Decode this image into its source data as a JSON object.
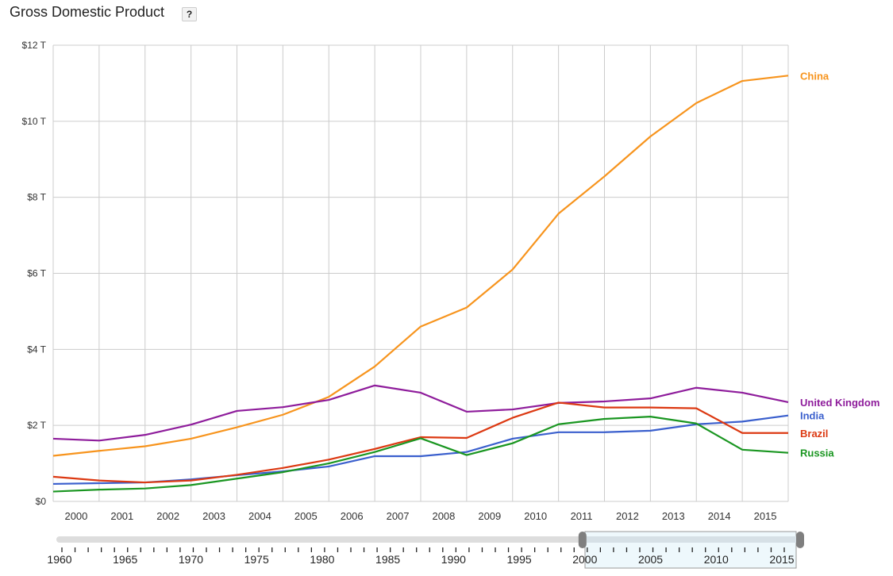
{
  "header": {
    "title": "Gross Domestic Product",
    "help_label": "?"
  },
  "chart_data": {
    "type": "line",
    "title": "Gross Domestic Product",
    "x": [
      2000,
      2001,
      2002,
      2003,
      2004,
      2005,
      2006,
      2007,
      2008,
      2009,
      2010,
      2011,
      2012,
      2013,
      2014,
      2015,
      2016
    ],
    "x_tick_labels": [
      "2000",
      "2001",
      "2002",
      "2003",
      "2004",
      "2005",
      "2006",
      "2007",
      "2008",
      "2009",
      "2010",
      "2011",
      "2012",
      "2013",
      "2014",
      "2015"
    ],
    "y_tick_labels": [
      "$0",
      "$2 T",
      "$4 T",
      "$6 T",
      "$8 T",
      "$10 T",
      "$12 T"
    ],
    "ylim": [
      0,
      12
    ],
    "y_unit": "trillion USD",
    "grid": true,
    "legend": "right, end-of-line labels",
    "series": [
      {
        "name": "China",
        "color": "#f7941d",
        "values": [
          1.2,
          1.33,
          1.45,
          1.65,
          1.95,
          2.28,
          2.75,
          3.55,
          4.6,
          5.1,
          6.1,
          7.57,
          8.55,
          9.6,
          10.48,
          11.06,
          11.2
        ]
      },
      {
        "name": "United Kingdom",
        "color": "#8e1c9b",
        "values": [
          1.65,
          1.6,
          1.75,
          2.02,
          2.38,
          2.48,
          2.67,
          3.05,
          2.86,
          2.36,
          2.42,
          2.59,
          2.63,
          2.71,
          2.99,
          2.86,
          2.61
        ]
      },
      {
        "name": "India",
        "color": "#3a5fcd",
        "values": [
          0.46,
          0.48,
          0.5,
          0.58,
          0.69,
          0.79,
          0.92,
          1.19,
          1.19,
          1.3,
          1.65,
          1.82,
          1.82,
          1.86,
          2.03,
          2.1,
          2.26
        ]
      },
      {
        "name": "Brazil",
        "color": "#dc3912",
        "values": [
          0.65,
          0.55,
          0.5,
          0.55,
          0.7,
          0.88,
          1.1,
          1.38,
          1.69,
          1.67,
          2.2,
          2.6,
          2.47,
          2.47,
          2.45,
          1.8,
          1.8
        ]
      },
      {
        "name": "Russia",
        "color": "#1a9621",
        "values": [
          0.26,
          0.31,
          0.34,
          0.43,
          0.6,
          0.77,
          1.0,
          1.3,
          1.66,
          1.22,
          1.53,
          2.03,
          2.17,
          2.23,
          2.05,
          1.36,
          1.28
        ]
      }
    ]
  },
  "time_slider": {
    "range_start": 1960,
    "range_end": 2015,
    "selected_start": 2000,
    "selected_end": 2015,
    "labels": [
      "1960",
      "1965",
      "1970",
      "1975",
      "1980",
      "1985",
      "1990",
      "1995",
      "2000",
      "2005",
      "2010",
      "2015"
    ]
  }
}
